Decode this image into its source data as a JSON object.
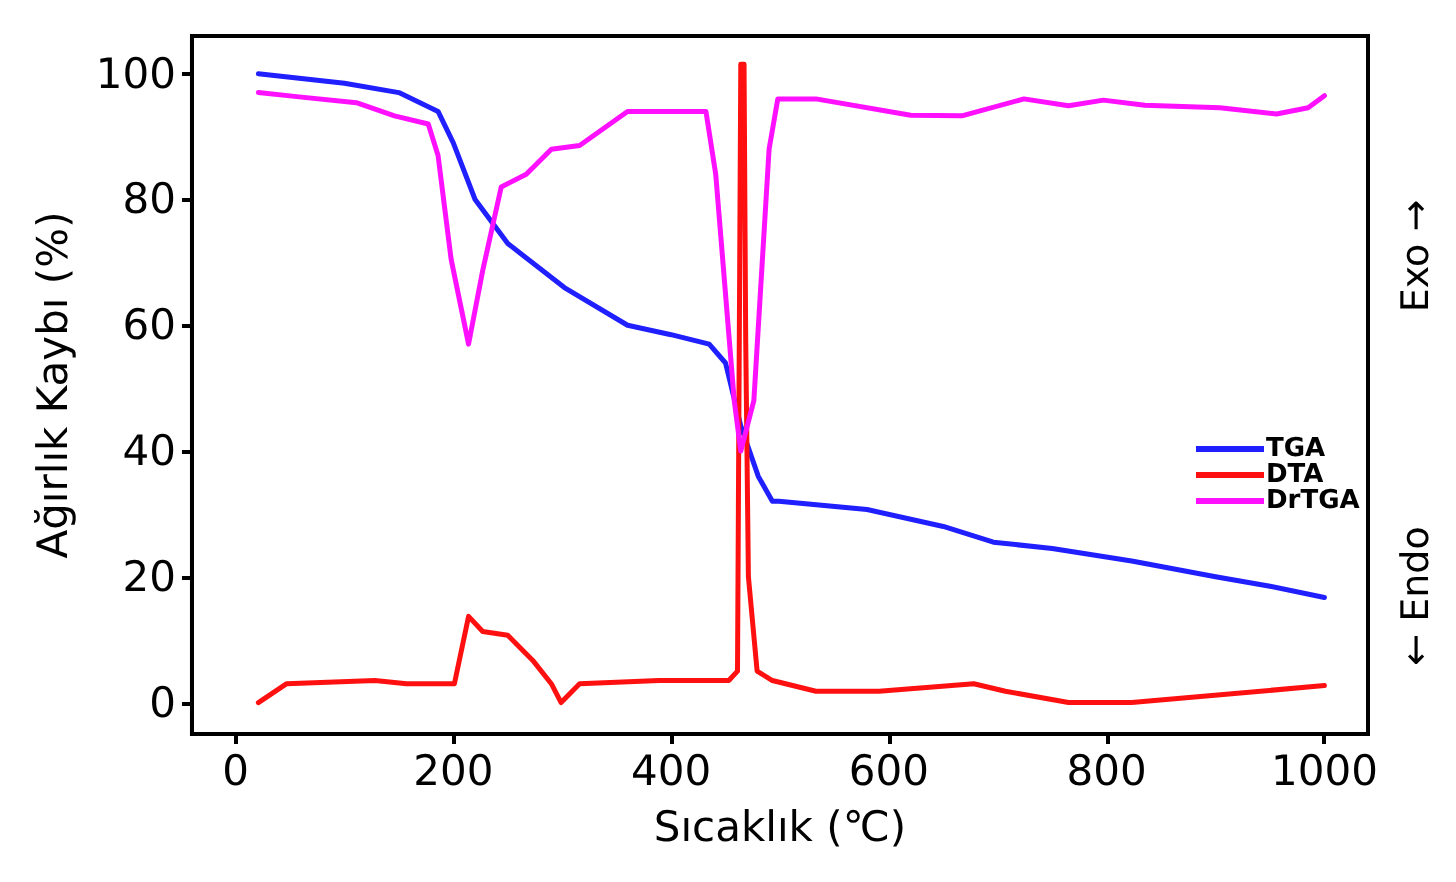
{
  "chart_data": {
    "type": "line",
    "xlabel": "Sıcaklık (℃)",
    "ylabel": "Ağırlık Kaybı (%)",
    "xlim": [
      -40,
      1040
    ],
    "ylim": [
      -5,
      106
    ],
    "xticks": [
      0,
      200,
      400,
      600,
      800,
      1000
    ],
    "yticks": [
      0,
      20,
      40,
      60,
      80,
      100
    ],
    "grid": false,
    "legend": "right",
    "marker": "none",
    "line_style": "solid",
    "annotations": [
      "← Endo",
      "Exo →"
    ],
    "series": [
      {
        "name": "TGA",
        "color": "#1f1fff",
        "x": [
          21,
          100,
          150,
          186,
          200,
          220,
          250,
          302,
          360,
          400,
          435,
          450,
          464,
          480,
          493,
          499,
          580,
          650,
          696,
          750,
          823,
          900,
          950,
          1000
        ],
        "values": [
          100,
          98.5,
          97,
          94,
          89,
          80,
          73,
          66,
          60,
          58.5,
          57,
          54,
          44,
          36,
          32,
          32,
          30.7,
          28,
          25.5,
          24.5,
          22.5,
          20,
          18.5,
          16.7
        ]
      },
      {
        "name": "DTA",
        "color": "#ff1010",
        "x": [
          21,
          47,
          128,
          157,
          201,
          214,
          227,
          250,
          273,
          290,
          299,
          316,
          389,
          453,
          461,
          464,
          467,
          468.5,
          471,
          479,
          493,
          533,
          591,
          678,
          707,
          765,
          823,
          1000
        ],
        "values": [
          0,
          3,
          3.5,
          3,
          3,
          13.7,
          11.3,
          10.7,
          6.7,
          3,
          0,
          3,
          3.5,
          3.5,
          5,
          101.5,
          101.5,
          58,
          20,
          5,
          3.5,
          1.8,
          1.8,
          3,
          1.8,
          0,
          0,
          2.7
        ]
      },
      {
        "name": "DrTGA",
        "color": "#ff10ff",
        "x": [
          21,
          54,
          111,
          146,
          177,
          186,
          198,
          214,
          227,
          244,
          267,
          290,
          316,
          360,
          432,
          441,
          458,
          464,
          476,
          490,
          498,
          533,
          620,
          667,
          724,
          765,
          797,
          835,
          904,
          956,
          985,
          1000
        ],
        "values": [
          97,
          96.4,
          95.4,
          93.3,
          92,
          87,
          70.5,
          57,
          68.7,
          82,
          84,
          88,
          88.6,
          94,
          94,
          84,
          48,
          40,
          48,
          88,
          96,
          96,
          93.4,
          93.3,
          96,
          94.9,
          95.8,
          95,
          94.6,
          93.6,
          94.6,
          96.5
        ]
      }
    ]
  }
}
